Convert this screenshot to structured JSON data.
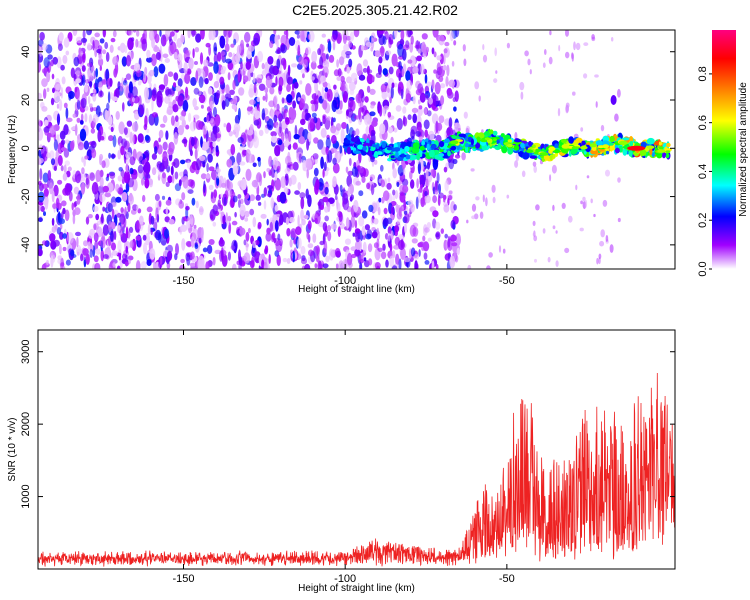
{
  "title": "C2E5.2025.305.21.42.R02",
  "chart_data": [
    {
      "type": "heatmap",
      "xlabel": "Height of straight line (km)",
      "ylabel": "Frequency (Hz)",
      "xlim": [
        -195,
        2
      ],
      "ylim": [
        -50,
        49
      ],
      "xticks": [
        -150,
        -100,
        -50
      ],
      "yticks": [
        -40,
        -20,
        0,
        20,
        40
      ],
      "colorbar": {
        "label": "Normalized spectral amplitude",
        "range": [
          0.0,
          0.98
        ],
        "ticks": [
          0.0,
          0.2,
          0.4,
          0.6,
          0.8
        ],
        "colormap": [
          "#ffffff",
          "#a000ff",
          "#0000ff",
          "#00ffff",
          "#00ff00",
          "#ffff00",
          "#ff8000",
          "#ff0000",
          "#ff0080"
        ]
      },
      "noise_region": {
        "x_from": -195,
        "x_to": -65,
        "typical_amplitude": 0.1
      },
      "ridge": [
        {
          "x": -100,
          "y": 2
        },
        {
          "x": -95,
          "y": 1
        },
        {
          "x": -90,
          "y": -1
        },
        {
          "x": -85,
          "y": -2
        },
        {
          "x": -80,
          "y": -1
        },
        {
          "x": -75,
          "y": 0
        },
        {
          "x": -70,
          "y": -1
        },
        {
          "x": -65,
          "y": 3
        },
        {
          "x": -60,
          "y": 2
        },
        {
          "x": -55,
          "y": 4
        },
        {
          "x": -50,
          "y": 2
        },
        {
          "x": -45,
          "y": 0
        },
        {
          "x": -40,
          "y": -2
        },
        {
          "x": -35,
          "y": -1
        },
        {
          "x": -30,
          "y": 1
        },
        {
          "x": -25,
          "y": 0
        },
        {
          "x": -20,
          "y": 1
        },
        {
          "x": -15,
          "y": 2
        },
        {
          "x": -10,
          "y": 0
        },
        {
          "x": -5,
          "y": 0
        },
        {
          "x": 0,
          "y": -1
        }
      ],
      "ridge_peak_amplitude": 0.9,
      "isolated_blob": {
        "x": -17,
        "y": 20
      }
    },
    {
      "type": "line",
      "xlabel": "Height of straight line (km)",
      "ylabel": "SNR (10 * v/v)",
      "xlim": [
        -195,
        2
      ],
      "ylim": [
        0,
        3300
      ],
      "xticks": [
        -150,
        -100,
        -50
      ],
      "yticks": [
        1000,
        2000,
        3000
      ],
      "color": "#ee2222",
      "envelope": [
        {
          "x": -195,
          "base": 100,
          "amp": 120
        },
        {
          "x": -100,
          "base": 100,
          "amp": 140
        },
        {
          "x": -92,
          "base": 120,
          "amp": 300
        },
        {
          "x": -65,
          "base": 100,
          "amp": 150
        },
        {
          "x": -58,
          "base": 250,
          "amp": 900
        },
        {
          "x": -50,
          "base": 350,
          "amp": 1200
        },
        {
          "x": -45,
          "base": 500,
          "amp": 2700
        },
        {
          "x": -40,
          "base": 300,
          "amp": 1300
        },
        {
          "x": -30,
          "base": 300,
          "amp": 1400
        },
        {
          "x": -25,
          "base": 400,
          "amp": 2000
        },
        {
          "x": -15,
          "base": 250,
          "amp": 1800
        },
        {
          "x": -8,
          "base": 500,
          "amp": 1900
        },
        {
          "x": -3,
          "base": 900,
          "amp": 2000
        },
        {
          "x": 2,
          "base": 1000,
          "amp": 1400
        }
      ]
    }
  ]
}
